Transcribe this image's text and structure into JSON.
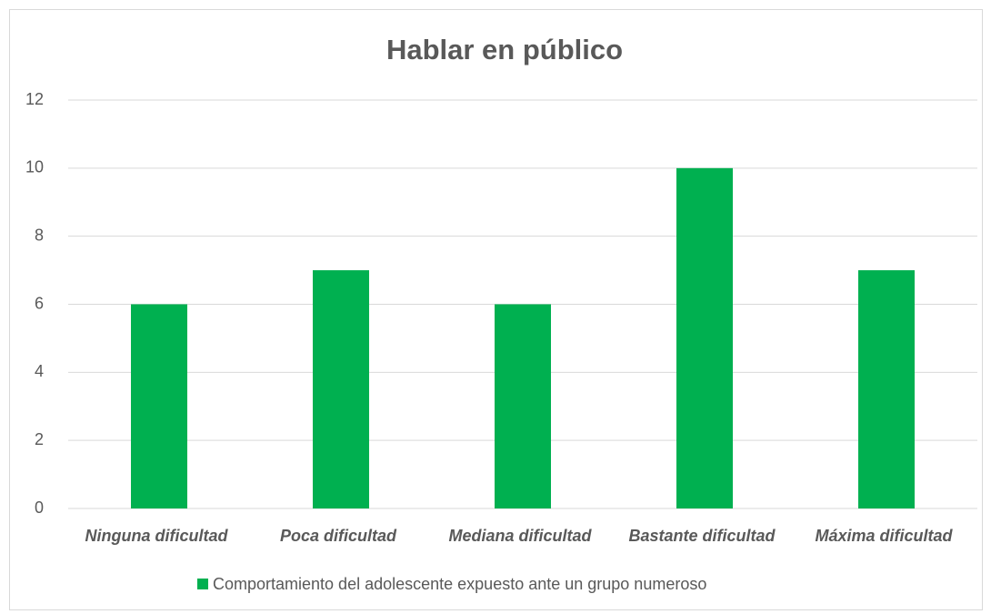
{
  "chart_data": {
    "type": "bar",
    "title": "Hablar en público",
    "categories": [
      "Ninguna dificultad",
      "Poca dificultad",
      "Mediana dificultad",
      "Bastante dificultad",
      "Máxima dificultad"
    ],
    "series": [
      {
        "name": "Comportamiento del adolescente expuesto ante un grupo numeroso",
        "color": "#00b050",
        "values": [
          6,
          7,
          6,
          10,
          7
        ]
      }
    ],
    "ylim": [
      0,
      12
    ],
    "yticks": [
      0,
      2,
      4,
      6,
      8,
      10,
      12
    ],
    "grid": true,
    "legend": "bottom"
  }
}
